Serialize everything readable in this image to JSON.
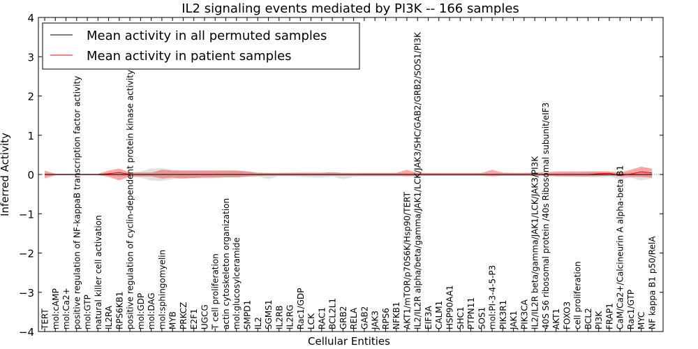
{
  "chart_data": {
    "type": "line",
    "title": "IL2 signaling events mediated by PI3K -- 166 samples",
    "xlabel": "Cellular Entities",
    "ylabel": "Inferred Activity",
    "ylim": [
      -4,
      4
    ],
    "yticks": [
      -4,
      -3,
      -2,
      -1,
      0,
      1,
      2,
      3,
      4
    ],
    "ytick_labels": [
      "−4",
      "−3",
      "−2",
      "−1",
      "0",
      "1",
      "2",
      "3",
      "4"
    ],
    "legend_position": "top-left",
    "categories": [
      "TERT",
      "mol:cAMP",
      "mol:Ca2+",
      "positive regulation of NF-kappaB transcription factor activity",
      "mol:GTP",
      "natural killer cell activation",
      "IL2RA",
      "RPS6KB1",
      "positive regulation of cyclin-dependent protein kinase activity",
      "mol:GDP",
      "mol:DAG",
      "mol:sphingomyelin",
      "MYB",
      "PRKCZ",
      "E2F1",
      "UGCG",
      "T cell proliferation",
      "actin cytoskeleton organization",
      "mol:glucosylceramide",
      "SMPD1",
      "IL2",
      "SGMS1",
      "IL2RB",
      "IL2RG",
      "Rac1/GDP",
      "LCK",
      "RAC1",
      "BCL2L1",
      "GRB2",
      "RELA",
      "GAB2",
      "JAK3",
      "RPS6",
      "NFKB1",
      "AKT1/mTOR/p70S6K/Hsp90/TERT",
      "IL2/IL2R alpha/beta/gamma/JAK1/LCK/JAK3/SHC/GAB2/GRB2/SOS1/PI3K",
      "EIF3A",
      "CALM1",
      "HSP90AA1",
      "SHC1",
      "PTPN11",
      "SOS1",
      "mol:PI-3-4-5-P3",
      "PIK3R1",
      "JAK1",
      "PIK3CA",
      "IL2/IL2R beta/gamma/JAK1/LCK/JAK3/PI3K",
      "40S S6 ribosomal protein /40s Ribosomal subunit/eIF3",
      "AKT1",
      "FOXO3",
      "cell proliferation",
      "BCL2",
      "PI3K",
      "FRAP1",
      "CaM/Ca2+/Calcineurin A alpha-beta B1",
      "Rac1/GTP",
      "MYC",
      "NF kappa B1 p50/RelA"
    ],
    "series": [
      {
        "name": "Mean activity in all permuted samples",
        "color": "#000000",
        "values": [
          0,
          0,
          0,
          0,
          0,
          0,
          0,
          0,
          0,
          0,
          0,
          0,
          0,
          0,
          0,
          0,
          0,
          0,
          0,
          0,
          0,
          0,
          0,
          0,
          0,
          0,
          0,
          0,
          0,
          0,
          0,
          0,
          0,
          0,
          0,
          0,
          0,
          0,
          0,
          0,
          0,
          0,
          0,
          0,
          0,
          0,
          0,
          0,
          0,
          0,
          0,
          0,
          0,
          0,
          0,
          0,
          0,
          0
        ],
        "lower": [
          -0.03,
          -0.02,
          -0.02,
          -0.02,
          -0.02,
          -0.02,
          -0.03,
          -0.05,
          -0.05,
          -0.08,
          -0.15,
          -0.16,
          -0.12,
          -0.1,
          -0.09,
          -0.08,
          -0.08,
          -0.07,
          -0.07,
          -0.06,
          -0.05,
          -0.12,
          -0.04,
          -0.05,
          -0.06,
          -0.07,
          -0.08,
          -0.05,
          -0.12,
          -0.06,
          -0.05,
          -0.05,
          -0.05,
          -0.05,
          -0.04,
          -0.04,
          -0.03,
          -0.03,
          -0.03,
          -0.03,
          -0.03,
          -0.03,
          -0.03,
          -0.04,
          -0.04,
          -0.04,
          -0.03,
          -0.03,
          -0.04,
          -0.05,
          -0.05,
          -0.06,
          -0.07,
          -0.06,
          -0.12,
          -0.08,
          -0.15,
          -0.1
        ],
        "upper": [
          0.03,
          0.02,
          0.02,
          0.02,
          0.02,
          0.02,
          0.03,
          0.05,
          0.05,
          0.08,
          0.15,
          0.16,
          0.12,
          0.1,
          0.1,
          0.1,
          0.1,
          0.1,
          0.1,
          0.08,
          0.06,
          0.04,
          0.04,
          0.05,
          0.06,
          0.06,
          0.06,
          0.05,
          0.04,
          0.04,
          0.04,
          0.04,
          0.04,
          0.04,
          0.04,
          0.04,
          0.03,
          0.03,
          0.03,
          0.03,
          0.03,
          0.03,
          0.03,
          0.04,
          0.04,
          0.04,
          0.03,
          0.03,
          0.04,
          0.05,
          0.05,
          0.06,
          0.07,
          0.05,
          0.04,
          0.05,
          0.06,
          0.05
        ]
      },
      {
        "name": "Mean activity in patient samples",
        "color": "#ff0000",
        "values": [
          0,
          0,
          0,
          0,
          0,
          0,
          0.02,
          0.05,
          0,
          0,
          0,
          0,
          0,
          0,
          0,
          0,
          0,
          0,
          0,
          0,
          0,
          0,
          0,
          0,
          0,
          0,
          0,
          0,
          0,
          0,
          0,
          0,
          0,
          0,
          0,
          0,
          0,
          0,
          0,
          0,
          0,
          0,
          0,
          0,
          0,
          0,
          0,
          0,
          0,
          0,
          0,
          0,
          0.02,
          0.03,
          -0.02,
          0.01,
          0.07,
          0.04
        ],
        "lower": [
          -0.1,
          -0.02,
          -0.02,
          -0.02,
          -0.02,
          -0.02,
          -0.06,
          -0.15,
          -0.05,
          -0.05,
          -0.05,
          -0.1,
          -0.08,
          -0.1,
          -0.09,
          -0.08,
          -0.08,
          -0.07,
          -0.07,
          -0.05,
          -0.04,
          -0.03,
          -0.03,
          -0.03,
          -0.03,
          -0.03,
          -0.03,
          -0.03,
          -0.03,
          -0.03,
          -0.03,
          -0.03,
          -0.03,
          -0.03,
          -0.05,
          -0.03,
          -0.03,
          -0.03,
          -0.03,
          -0.03,
          -0.03,
          -0.03,
          -0.05,
          -0.03,
          -0.03,
          -0.03,
          -0.03,
          -0.03,
          -0.05,
          -0.05,
          -0.05,
          -0.05,
          -0.04,
          -0.03,
          -0.05,
          -0.06,
          -0.06,
          -0.08
        ],
        "upper": [
          0.1,
          0.02,
          0.02,
          0.02,
          0.02,
          0.02,
          0.1,
          0.15,
          0.05,
          0.05,
          0.05,
          0.12,
          0.1,
          0.1,
          0.1,
          0.1,
          0.1,
          0.1,
          0.1,
          0.08,
          0.04,
          0.04,
          0.04,
          0.04,
          0.04,
          0.04,
          0.04,
          0.06,
          0.04,
          0.04,
          0.04,
          0.04,
          0.04,
          0.04,
          0.12,
          0.04,
          0.04,
          0.04,
          0.04,
          0.04,
          0.04,
          0.04,
          0.12,
          0.05,
          0.04,
          0.04,
          0.05,
          0.06,
          0.08,
          0.08,
          0.08,
          0.08,
          0.08,
          0.08,
          0.05,
          0.12,
          0.2,
          0.15
        ]
      }
    ]
  }
}
